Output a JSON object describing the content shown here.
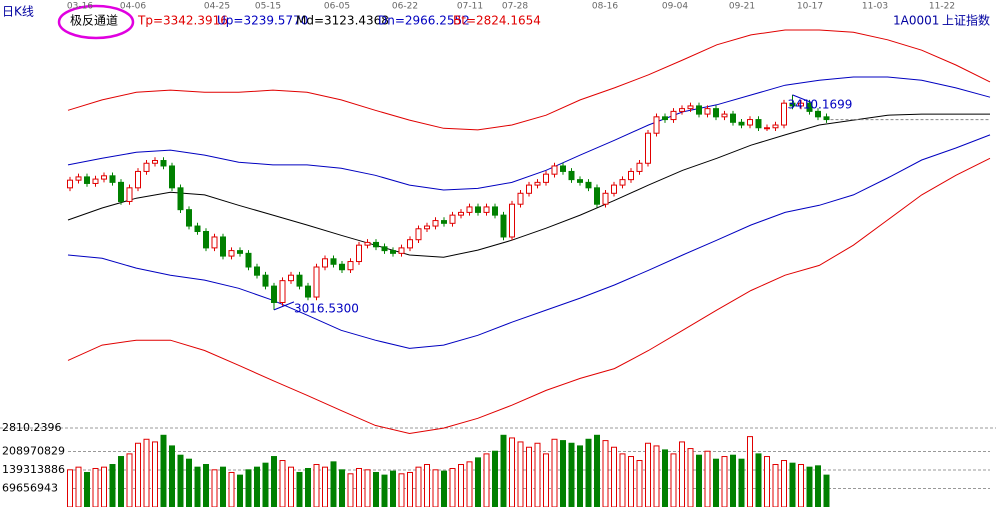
{
  "chart_data": {
    "type": "candlestick",
    "title": "日K线",
    "indicator": "极反通道",
    "symbol": "1A0001",
    "symbol_name": "上证指数",
    "date_labels": [
      "03-16",
      "04-06",
      "04-25",
      "05-15",
      "06-05",
      "06-22",
      "07-11",
      "07-28",
      "08-16",
      "09-04",
      "09-21",
      "10-17",
      "11-03",
      "11-22"
    ],
    "ylim": [
      2791,
      3551
    ],
    "up_color": "#e00000",
    "down_color": "#008000",
    "open": [
      3240,
      3254,
      3260,
      3248,
      3256,
      3262,
      3250,
      3215,
      3240,
      3270,
      3285,
      3290,
      3280,
      3240,
      3200,
      3170,
      3160,
      3130,
      3150,
      3115,
      3125,
      3120,
      3095,
      3080,
      3060,
      3030,
      3070,
      3080,
      3060,
      3040,
      3095,
      3110,
      3100,
      3090,
      3105,
      3135,
      3140,
      3132,
      3125,
      3120,
      3130,
      3145,
      3165,
      3170,
      3180,
      3175,
      3190,
      3195,
      3205,
      3195,
      3205,
      3190,
      3150,
      3210,
      3230,
      3245,
      3250,
      3265,
      3280,
      3270,
      3255,
      3250,
      3240,
      3210,
      3230,
      3245,
      3255,
      3270,
      3285,
      3340,
      3370,
      3365,
      3380,
      3385,
      3390,
      3375,
      3385,
      3370,
      3375,
      3360,
      3355,
      3365,
      3350,
      3350,
      3355,
      3395,
      3390,
      3395,
      3380,
      3370
    ],
    "high": [
      3260,
      3266,
      3266,
      3262,
      3268,
      3268,
      3256,
      3246,
      3276,
      3291,
      3296,
      3296,
      3286,
      3246,
      3206,
      3176,
      3166,
      3156,
      3156,
      3131,
      3131,
      3126,
      3101,
      3086,
      3066,
      3076,
      3086,
      3086,
      3066,
      3101,
      3116,
      3116,
      3106,
      3111,
      3141,
      3146,
      3146,
      3138,
      3131,
      3136,
      3151,
      3171,
      3176,
      3186,
      3186,
      3196,
      3201,
      3211,
      3211,
      3211,
      3211,
      3196,
      3216,
      3236,
      3251,
      3256,
      3271,
      3286,
      3286,
      3276,
      3261,
      3256,
      3246,
      3236,
      3251,
      3261,
      3276,
      3291,
      3346,
      3376,
      3376,
      3386,
      3391,
      3396,
      3396,
      3391,
      3391,
      3381,
      3381,
      3366,
      3371,
      3371,
      3356,
      3361,
      3401,
      3410.17,
      3401,
      3401,
      3386,
      3376
    ],
    "low": [
      3234,
      3248,
      3242,
      3242,
      3250,
      3244,
      3209,
      3209,
      3234,
      3264,
      3279,
      3274,
      3234,
      3194,
      3164,
      3154,
      3124,
      3124,
      3109,
      3109,
      3114,
      3089,
      3074,
      3054,
      3016.53,
      3024,
      3064,
      3054,
      3034,
      3034,
      3089,
      3094,
      3084,
      3084,
      3099,
      3129,
      3126,
      3119,
      3114,
      3114,
      3124,
      3139,
      3159,
      3164,
      3169,
      3169,
      3184,
      3189,
      3189,
      3189,
      3184,
      3144,
      3144,
      3204,
      3224,
      3239,
      3244,
      3259,
      3264,
      3249,
      3244,
      3234,
      3204,
      3204,
      3224,
      3239,
      3249,
      3264,
      3279,
      3334,
      3359,
      3359,
      3374,
      3379,
      3369,
      3369,
      3364,
      3364,
      3354,
      3349,
      3349,
      3344,
      3344,
      3344,
      3349,
      3384,
      3384,
      3374,
      3364,
      3359
    ],
    "close": [
      3254,
      3260,
      3248,
      3256,
      3262,
      3250,
      3215,
      3240,
      3270,
      3285,
      3290,
      3280,
      3240,
      3200,
      3170,
      3160,
      3130,
      3150,
      3115,
      3125,
      3120,
      3095,
      3080,
      3060,
      3030,
      3070,
      3080,
      3060,
      3040,
      3095,
      3110,
      3100,
      3090,
      3105,
      3135,
      3140,
      3132,
      3125,
      3120,
      3130,
      3145,
      3165,
      3170,
      3180,
      3175,
      3190,
      3195,
      3205,
      3195,
      3205,
      3190,
      3150,
      3210,
      3230,
      3245,
      3250,
      3265,
      3280,
      3270,
      3255,
      3250,
      3240,
      3210,
      3230,
      3245,
      3255,
      3270,
      3285,
      3340,
      3370,
      3365,
      3380,
      3385,
      3390,
      3375,
      3385,
      3370,
      3375,
      3360,
      3355,
      3365,
      3350,
      3350,
      3355,
      3395,
      3390,
      3395,
      3380,
      3370,
      3365
    ],
    "bands": [
      {
        "name": "Tp=3342.3916",
        "color": "#e00000",
        "values": [
          3382,
          3401,
          3415,
          3419,
          3415,
          3415,
          3419,
          3415,
          3401,
          3382,
          3364,
          3349,
          3346,
          3355,
          3373,
          3401,
          3423,
          3447,
          3474,
          3502,
          3520,
          3529,
          3529,
          3525,
          3511,
          3492,
          3465,
          3434
        ]
      },
      {
        "name": "Up=3239.5770",
        "color": "#0000c0",
        "values": [
          3282,
          3294,
          3305,
          3309,
          3300,
          3287,
          3282,
          3282,
          3276,
          3263,
          3245,
          3236,
          3239,
          3250,
          3272,
          3300,
          3327,
          3355,
          3379,
          3392,
          3410,
          3428,
          3437,
          3443,
          3443,
          3437,
          3423,
          3406
        ]
      },
      {
        "name": "Md=3123.4368",
        "color": "#000000",
        "values": [
          3181,
          3203,
          3221,
          3232,
          3227,
          3208,
          3190,
          3172,
          3153,
          3135,
          3117,
          3113,
          3126,
          3144,
          3166,
          3190,
          3217,
          3245,
          3272,
          3294,
          3318,
          3337,
          3355,
          3364,
          3373,
          3375,
          3375,
          3375
        ]
      },
      {
        "name": "Dn=2966.2552",
        "color": "#0000c0",
        "values": [
          3117,
          3111,
          3093,
          3080,
          3071,
          3056,
          3034,
          3007,
          2979,
          2961,
          2946,
          2952,
          2970,
          2994,
          3016,
          3038,
          3062,
          3089,
          3117,
          3144,
          3172,
          3195,
          3208,
          3227,
          3258,
          3291,
          3313,
          3337
        ]
      },
      {
        "name": "Bt=2824.1654",
        "color": "#e00000",
        "values": [
          2924,
          2952,
          2961,
          2961,
          2942,
          2915,
          2887,
          2860,
          2832,
          2805,
          2790,
          2800,
          2818,
          2842,
          2869,
          2891,
          2909,
          2942,
          2979,
          3016,
          3052,
          3080,
          3098,
          3135,
          3181,
          3227,
          3263,
          3294
        ]
      }
    ],
    "annotations": [
      {
        "text": "3410.1699"
      },
      {
        "text": "3016.5300"
      }
    ],
    "volume": {
      "ylim": [
        0,
        278627772
      ],
      "yticks": [
        69656943,
        139313886,
        208970829
      ],
      "top_label": "2810.2396",
      "values": [
        140000000,
        150000000,
        130000000,
        145000000,
        150000000,
        160000000,
        190000000,
        200000000,
        240000000,
        255000000,
        245000000,
        270000000,
        230000000,
        195000000,
        180000000,
        150000000,
        160000000,
        140000000,
        150000000,
        130000000,
        120000000,
        140000000,
        150000000,
        165000000,
        190000000,
        175000000,
        150000000,
        130000000,
        145000000,
        160000000,
        150000000,
        170000000,
        140000000,
        125000000,
        145000000,
        140000000,
        130000000,
        120000000,
        135000000,
        125000000,
        130000000,
        150000000,
        160000000,
        140000000,
        135000000,
        145000000,
        160000000,
        170000000,
        185000000,
        200000000,
        210000000,
        270000000,
        260000000,
        245000000,
        225000000,
        240000000,
        200000000,
        255000000,
        250000000,
        240000000,
        230000000,
        255000000,
        270000000,
        250000000,
        225000000,
        200000000,
        190000000,
        175000000,
        240000000,
        230000000,
        215000000,
        200000000,
        245000000,
        220000000,
        195000000,
        210000000,
        180000000,
        190000000,
        195000000,
        180000000,
        265000000,
        200000000,
        190000000,
        160000000,
        175000000,
        165000000,
        160000000,
        150000000,
        155000000,
        120000000
      ]
    }
  }
}
